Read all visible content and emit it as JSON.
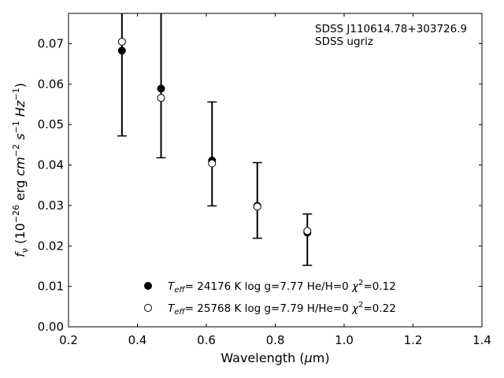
{
  "chart_data": {
    "type": "scatter",
    "annotations": [
      "SDSS J110614.78+303726.9",
      "SDSS ugriz"
    ],
    "xlabel": {
      "prefix": "Wavelength (",
      "greek": "μ",
      "suffix": "m)"
    },
    "ylabel": {
      "parts": [
        {
          "t": "f",
          "s": "i"
        },
        {
          "t": "ν",
          "s": "sub"
        },
        {
          "t": " (10",
          "s": "n"
        },
        {
          "t": "−26",
          "s": "sup"
        },
        {
          "t": " erg ",
          "s": "n"
        },
        {
          "t": "cm",
          "s": "i"
        },
        {
          "t": "−2",
          "s": "sup"
        },
        {
          "t": " ",
          "s": "n"
        },
        {
          "t": "s",
          "s": "i"
        },
        {
          "t": "−1",
          "s": "sup"
        },
        {
          "t": " ",
          "s": "n"
        },
        {
          "t": "Hz",
          "s": "i"
        },
        {
          "t": "−1",
          "s": "sup"
        },
        {
          "t": ")",
          "s": "n"
        }
      ]
    },
    "xlim": [
      0.2,
      1.4
    ],
    "ylim": [
      0.0,
      0.0775
    ],
    "xticks": [
      0.2,
      0.4,
      0.6,
      0.8,
      1.0,
      1.2,
      1.4
    ],
    "xtick_labels": [
      "0.2",
      "0.4",
      "0.6",
      "0.8",
      "1.0",
      "1.2",
      "1.4"
    ],
    "yticks": [
      0.0,
      0.01,
      0.02,
      0.03,
      0.04,
      0.05,
      0.06,
      0.07
    ],
    "ytick_labels": [
      "0.00",
      "0.01",
      "0.02",
      "0.03",
      "0.04",
      "0.05",
      "0.06",
      "0.07"
    ],
    "grid": false,
    "legend_placement": "lower-center",
    "observed": {
      "x": [
        0.3551,
        0.4686,
        0.6166,
        0.748,
        0.8932
      ],
      "y": [
        0.0683,
        0.0589,
        0.0411,
        0.0299,
        0.0233
      ],
      "err_low": [
        0.0472,
        0.0418,
        0.0299,
        0.0219,
        0.0152
      ],
      "err_high": [
        0.0775,
        0.0775,
        0.0556,
        0.0406,
        0.0279
      ]
    },
    "series": [
      {
        "name": "T_eff= 24176 K  log g=7.77  He/H=0  χ²=0.12",
        "marker": "filled-circle",
        "color": "#000000",
        "x": [
          0.3551,
          0.4686,
          0.6166,
          0.748,
          0.8932
        ],
        "y": [
          0.0683,
          0.0589,
          0.0411,
          0.0299,
          0.0233
        ]
      },
      {
        "name": "T_eff= 25768 K  log g=7.79  H/He=0  χ²=0.22",
        "marker": "open-circle",
        "color": "#000000",
        "x": [
          0.3551,
          0.4686,
          0.6166,
          0.748,
          0.8932
        ],
        "y": [
          0.0705,
          0.0566,
          0.0404,
          0.0297,
          0.0237
        ]
      }
    ],
    "legend": [
      {
        "teff_label": "T",
        "teff_sub": "eff",
        "rest": "= 24176 K  log g=7.77  He/H=0  ",
        "chi": "χ",
        "chi_sup": "2",
        "chi_val": "=0.12"
      },
      {
        "teff_label": "T",
        "teff_sub": "eff",
        "rest": "= 25768 K  log g=7.79  H/He=0  ",
        "chi": "χ",
        "chi_sup": "2",
        "chi_val": "=0.22"
      }
    ]
  }
}
